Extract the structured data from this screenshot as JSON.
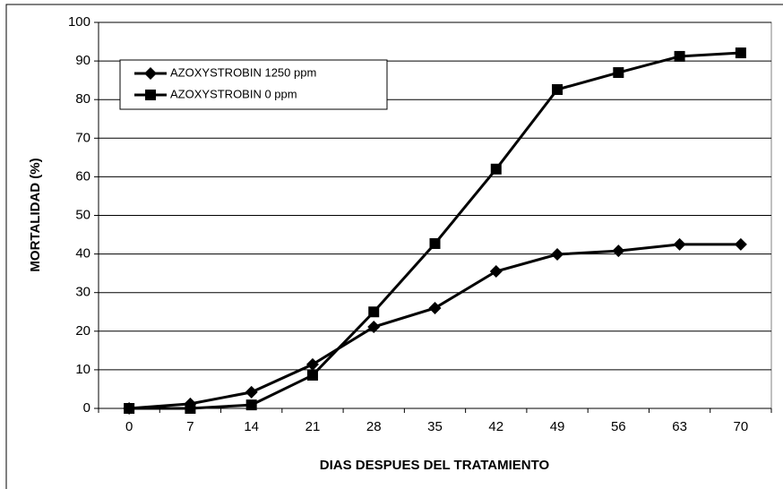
{
  "chart_data": {
    "type": "line",
    "xlabel": "DIAS DESPUES DEL TRATAMIENTO",
    "ylabel": "MORTALIDAD (%)",
    "categories": [
      "0",
      "7",
      "14",
      "21",
      "28",
      "35",
      "42",
      "49",
      "56",
      "63",
      "70"
    ],
    "series": [
      {
        "name": "AZOXYSTROBIN 1250 ppm",
        "color": "#000000",
        "marker": "diamond",
        "values": [
          0,
          1.2,
          4.2,
          11.4,
          21.1,
          26,
          35.5,
          39.9,
          40.8,
          42.5,
          42.5
        ]
      },
      {
        "name": "AZOXYSTROBIN 0 ppm",
        "color": "#000000",
        "marker": "square",
        "values": [
          0,
          0,
          0.9,
          8.6,
          25,
          42.7,
          62,
          82.6,
          87,
          91.2,
          92.1
        ]
      }
    ],
    "ylim": [
      0,
      100
    ],
    "yticks": [
      0,
      10,
      20,
      30,
      40,
      50,
      60,
      70,
      80,
      90,
      100
    ],
    "grid": true,
    "legend": "upper left"
  }
}
